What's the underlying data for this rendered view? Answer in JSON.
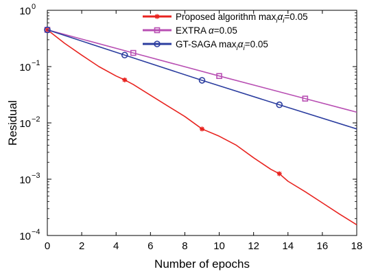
{
  "chart_data": {
    "type": "line",
    "xlabel": "Number of epochs",
    "ylabel": "Residual",
    "xlim": [
      0,
      18
    ],
    "ylim": [
      0.0001,
      1
    ],
    "yscale": "log",
    "xticks": [
      0,
      2,
      4,
      6,
      8,
      10,
      12,
      14,
      16,
      18
    ],
    "xtick_labels": [
      "0",
      "2",
      "4",
      "6",
      "8",
      "10",
      "12",
      "14",
      "16",
      "18"
    ],
    "yticks": [
      {
        "value": 1,
        "base": "10",
        "exp": "0"
      },
      {
        "value": 0.1,
        "base": "10",
        "exp": "−1"
      },
      {
        "value": 0.01,
        "base": "10",
        "exp": "−2"
      },
      {
        "value": 0.001,
        "base": "10",
        "exp": "−3"
      },
      {
        "value": 0.0001,
        "base": "10",
        "exp": "−4"
      }
    ],
    "grid": false,
    "legend_position": "top-right",
    "series": [
      {
        "name": "Proposed algorithm max",
        "legend_sub": "i",
        "legend_alpha": "α",
        "legend_suffix": "=0.05",
        "color": "#e8231f",
        "marker": "star",
        "marker_x": [
          0,
          4.5,
          9,
          13.5
        ],
        "x": [
          0,
          1,
          2,
          3,
          4,
          4.5,
          5,
          6,
          7,
          8,
          9,
          10,
          11,
          12,
          13,
          13.5,
          14,
          15,
          16,
          17,
          18
        ],
        "y": [
          0.45,
          0.26,
          0.16,
          0.1,
          0.068,
          0.058,
          0.048,
          0.031,
          0.02,
          0.013,
          0.0078,
          0.0058,
          0.004,
          0.0024,
          0.0015,
          0.00125,
          0.00092,
          0.0006,
          0.00038,
          0.00024,
          0.000155
        ]
      },
      {
        "name": "EXTRA ",
        "legend_sub": "",
        "legend_alpha": "α",
        "legend_suffix": "=0.05",
        "color": "#b84fb3",
        "marker": "square",
        "marker_x": [
          0,
          5,
          10,
          15
        ],
        "x": [
          0,
          5,
          10,
          15,
          18
        ],
        "y": [
          0.45,
          0.175,
          0.068,
          0.027,
          0.0155
        ]
      },
      {
        "name": "GT-SAGA max",
        "legend_sub": "i",
        "legend_alpha": "α",
        "legend_suffix": "=0.05",
        "color": "#2b3d9f",
        "marker": "circle",
        "marker_x": [
          0,
          4.5,
          9,
          13.5
        ],
        "x": [
          0,
          4.5,
          9,
          13.5,
          18
        ],
        "y": [
          0.45,
          0.16,
          0.057,
          0.021,
          0.0078
        ]
      }
    ]
  }
}
